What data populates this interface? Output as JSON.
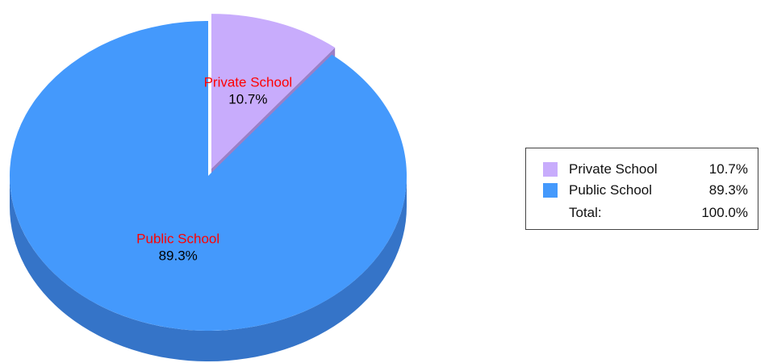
{
  "chart_data": {
    "type": "pie",
    "style": "3d-exploded",
    "slices": [
      {
        "label": "Private School",
        "value": 10.7,
        "value_label": "10.7%",
        "color": "#c8acfc",
        "side_color": "#9a7fc8",
        "exploded": true
      },
      {
        "label": "Public School",
        "value": 89.3,
        "value_label": "89.3%",
        "color": "#4499fc",
        "side_color": "#3574c8",
        "exploded": false
      }
    ],
    "slice_label_color": "#ff0000",
    "value_label_color": "#000000",
    "legend": {
      "placement": "right",
      "items": [
        {
          "label": "Private School",
          "value": "10.7%",
          "color": "#c8acfc"
        },
        {
          "label": "Public School",
          "value": "89.3%",
          "color": "#4499fc"
        }
      ],
      "total_label": "Total:",
      "total_value": "100.0%"
    }
  }
}
